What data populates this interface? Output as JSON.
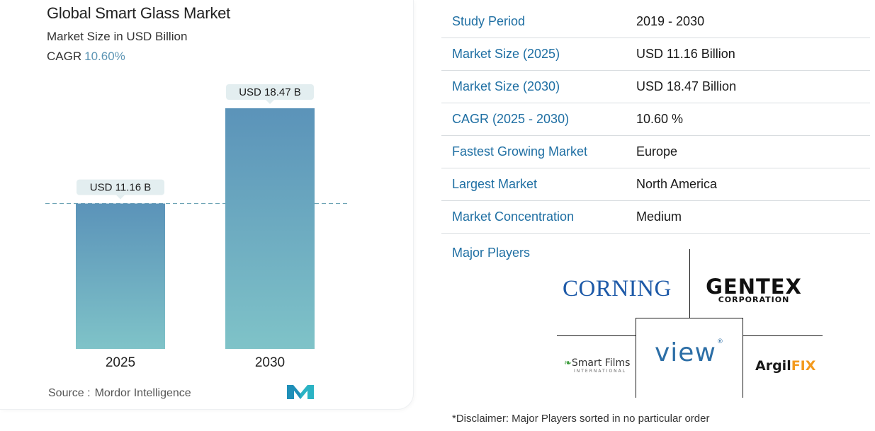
{
  "chart_data": {
    "type": "bar",
    "title": "Global Smart Glass Market",
    "subtitle": "Market Size in USD Billion",
    "cagr_label": "CAGR",
    "cagr_value": "10.60%",
    "categories": [
      "2025",
      "2030"
    ],
    "values": [
      11.16,
      18.47
    ],
    "data_labels": [
      "USD 11.16 B",
      "USD 18.47 B"
    ],
    "ylim": [
      0,
      18.47
    ],
    "xlabel": "",
    "ylabel": "",
    "grid": false,
    "colors": {
      "bar_top": "#5b93b9",
      "bar_bottom": "#7fc3c8",
      "label_bg": "#e3eef0",
      "dash": "#6ea4b5"
    }
  },
  "source": {
    "label": "Source :",
    "name": "Mordor Intelligence"
  },
  "info_table": [
    {
      "label": "Study Period",
      "value": "2019 - 2030"
    },
    {
      "label": "Market Size (2025)",
      "value": "USD 11.16 Billion"
    },
    {
      "label": "Market Size (2030)",
      "value": "USD 18.47 Billion"
    },
    {
      "label": "CAGR (2025 - 2030)",
      "value": "10.60 %"
    },
    {
      "label": "Fastest Growing Market",
      "value": "Europe"
    },
    {
      "label": "Largest Market",
      "value": "North America"
    },
    {
      "label": "Market Concentration",
      "value": "Medium"
    }
  ],
  "major_players": {
    "title": "Major Players",
    "logos": {
      "corning": "CORNING",
      "gentex_main": "GENTEX",
      "gentex_sub": "CORPORATION",
      "view": "view",
      "smart_films_main": "Smart Films",
      "smart_films_sub": "INTERNATIONAL",
      "argilfix_a": "Argil",
      "argilfix_b": "FIX"
    }
  },
  "disclaimer": "*Disclaimer: Major Players sorted in no particular order",
  "colors": {
    "accent": "#1f6fa3",
    "cagr": "#5d95b4",
    "divider": "#d9dde0"
  }
}
